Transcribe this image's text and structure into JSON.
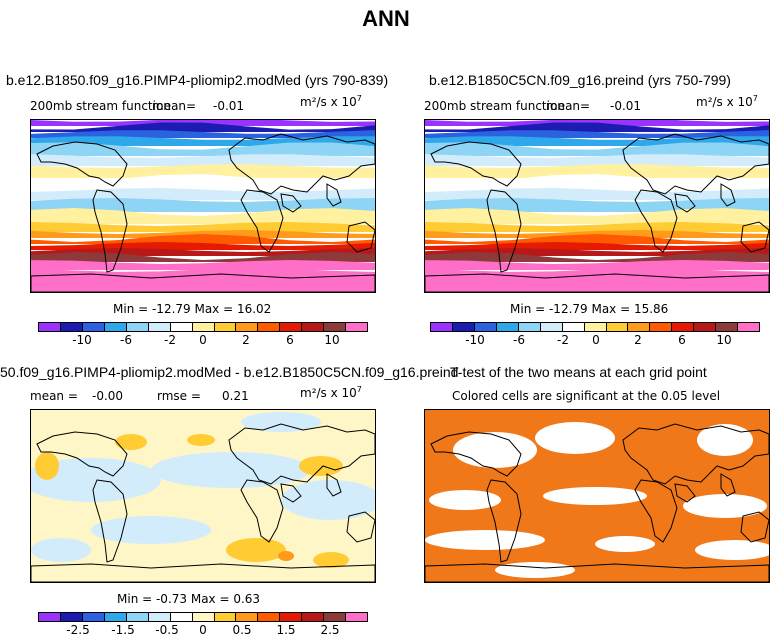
{
  "page_title": "ANN",
  "chart_data": [
    {
      "type": "contour-map",
      "title": "b.e12.B1850.f09_g16.PIMP4-pliomip2.modMed (yrs 790-839)",
      "variable": "200mb stream function",
      "mean_label": "mean=",
      "mean": "-0.01",
      "units_base": "m²/s x 10",
      "units_exp": "7",
      "min_max_text": "Min = -12.79 Max =  16.02",
      "min": -12.79,
      "max": 16.02,
      "colorbar_ticks": [
        "-10",
        "-6",
        "-2",
        "0",
        "2",
        "6",
        "10"
      ],
      "colorbar_colors": [
        "#9a33ff",
        "#1c1cb0",
        "#2a62e0",
        "#2ea8ea",
        "#8ed4f4",
        "#d2ecfb",
        "#ffffff",
        "#fff1a0",
        "#ffcc33",
        "#ff9a1a",
        "#ff5a00",
        "#e61a00",
        "#b81818",
        "#8e3a3a",
        "#ff6ec7"
      ]
    },
    {
      "type": "contour-map",
      "title": "b.e12.B1850C5CN.f09_g16.preind (yrs 750-799)",
      "variable": "200mb stream function",
      "mean_label": "mean=",
      "mean": "-0.01",
      "units_base": "m²/s x 10",
      "units_exp": "7",
      "min_max_text": "Min = -12.79 Max =  15.86",
      "min": -12.79,
      "max": 15.86,
      "colorbar_ticks": [
        "-10",
        "-6",
        "-2",
        "0",
        "2",
        "6",
        "10"
      ]
    },
    {
      "type": "contour-map",
      "title": "50.f09_g16.PIMP4-pliomip2.modMed - b.e12.B1850C5CN.f09_g16.preind",
      "mean_label": "mean =",
      "mean": "-0.00",
      "rmse_label": "rmse =",
      "rmse": "0.21",
      "units_base": "m²/s x 10",
      "units_exp": "7",
      "min_max_text": "Min =  -0.73 Max =   0.63",
      "min": -0.73,
      "max": 0.63,
      "colorbar_ticks": [
        "-2.5",
        "-1.5",
        "-0.5",
        "0",
        "0.5",
        "1.5",
        "2.5"
      ],
      "colorbar_colors": [
        "#9a33ff",
        "#1c1cb0",
        "#2a62e0",
        "#2ea8ea",
        "#8ed4f4",
        "#d2ecfb",
        "#ffffff",
        "#fff6c8",
        "#ffcc33",
        "#ff9a1a",
        "#ff5a00",
        "#e61a00",
        "#b81818",
        "#8e3a3a",
        "#ff6ec7"
      ]
    },
    {
      "type": "significance-map",
      "title": "T-test of the two means at each grid point",
      "subtitle": "Colored cells are significant at the 0.05 level",
      "significant_color": "#f07818"
    }
  ]
}
